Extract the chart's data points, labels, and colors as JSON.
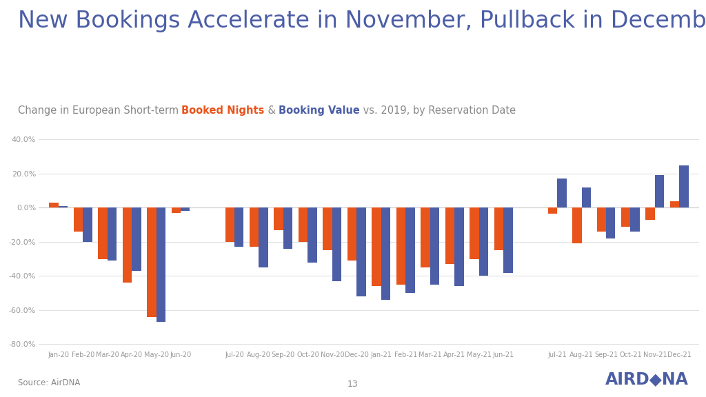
{
  "title": "New Bookings Accelerate in November, Pullback in December",
  "source": "Source: AirDNA",
  "page_num": "13",
  "background_color": "#FFFFFF",
  "title_color": "#4B5EA6",
  "categories": [
    "Jan-20",
    "Feb-20",
    "Mar-20",
    "Apr-20",
    "May-20",
    "Jun-20",
    "Jul-20",
    "Aug-20",
    "Sep-20",
    "Oct-20",
    "Nov-20",
    "Dec-20",
    "Jan-21",
    "Feb-21",
    "Mar-21",
    "Apr-21",
    "May-21",
    "Jun-21",
    "Jul-21",
    "Aug-21",
    "Sep-21",
    "Oct-21",
    "Nov-21",
    "Dec-21"
  ],
  "booked_nights": [
    3.0,
    -14.0,
    -30.0,
    -44.0,
    -64.0,
    -3.0,
    -20.0,
    -23.0,
    -13.0,
    -20.0,
    -25.0,
    -31.0,
    -46.0,
    -45.0,
    -35.0,
    -33.0,
    -30.0,
    -25.0,
    -3.5,
    -21.0,
    -14.0,
    -11.0,
    -7.0,
    4.0
  ],
  "booking_value": [
    1.0,
    -20.0,
    -31.0,
    -37.0,
    -67.0,
    -2.0,
    -23.0,
    -35.0,
    -24.0,
    -32.0,
    -43.0,
    -52.0,
    -54.0,
    -50.0,
    -45.0,
    -46.0,
    -40.0,
    -38.0,
    17.0,
    12.0,
    -18.0,
    -14.0,
    19.0,
    25.0
  ],
  "nights_color": "#E8541A",
  "value_color": "#4B5EA6",
  "ylim": [
    -83.0,
    45.0
  ],
  "yticks": [
    -80.0,
    -60.0,
    -40.0,
    -20.0,
    0.0,
    20.0,
    40.0
  ],
  "bar_width": 0.38,
  "grid_color": "#E0E0E0",
  "axis_color": "#CCCCCC",
  "tick_color": "#999999",
  "subtitle_gray": "#888888",
  "subtitle_orange": "#E8541A",
  "subtitle_blue": "#4B5EA6"
}
